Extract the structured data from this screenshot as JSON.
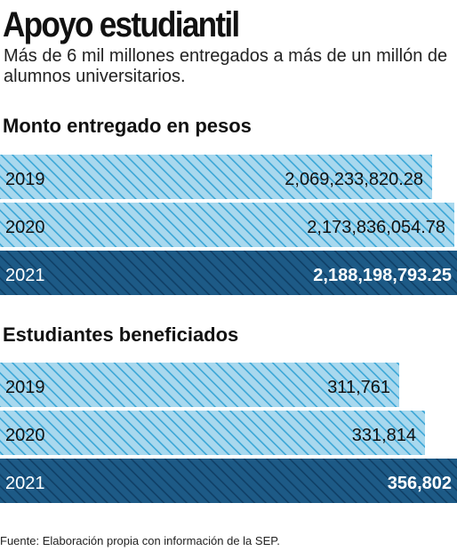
{
  "header": {
    "title": "Apoyo estudiantil",
    "subtitle": "Más de 6 mil millones entregados a más de un millón de alumnos universitarios."
  },
  "colors": {
    "light_bar": "#a8d8ee",
    "light_hatch": "#3aa6d6",
    "dark_bar": "#1d5a86",
    "dark_hatch": "#0f3f66"
  },
  "chart_data": [
    {
      "type": "bar",
      "title": "Monto entregado en pesos",
      "orientation": "horizontal",
      "categories": [
        "2019",
        "2020",
        "2021"
      ],
      "values": [
        2069233820.28,
        2173836054.78,
        2188198793.25
      ],
      "value_labels": [
        "2,069,233,820.28",
        "2,173,836,054.78",
        "2,188,198,793.25"
      ],
      "highlight": "2021",
      "ylim": [
        0,
        2188198793.25
      ]
    },
    {
      "type": "bar",
      "title": "Estudiantes beneficiados",
      "orientation": "horizontal",
      "categories": [
        "2019",
        "2020",
        "2021"
      ],
      "values": [
        311761,
        331814,
        356802
      ],
      "value_labels": [
        "311,761",
        "331,814",
        "356,802"
      ],
      "highlight": "2021",
      "ylim": [
        0,
        356802
      ]
    }
  ],
  "footer": {
    "source": "Fuente: Elaboración propia con información de la SEP."
  }
}
